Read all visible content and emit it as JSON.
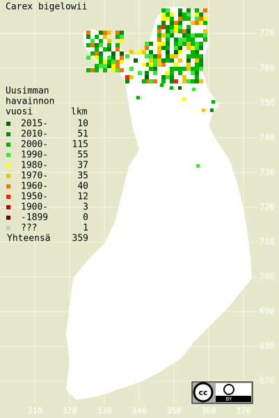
{
  "title": "Carex bigelowii",
  "legend": {
    "heading": [
      "Uusimman",
      "havainnon",
      "vuosi"
    ],
    "count_heading": "lkm",
    "rows": [
      {
        "label": "2015-",
        "count": 10,
        "color": "#006400"
      },
      {
        "label": "2010-",
        "count": 51,
        "color": "#008c00"
      },
      {
        "label": "2000-",
        "count": 115,
        "color": "#00b400"
      },
      {
        "label": "1990-",
        "count": 55,
        "color": "#3ce63c"
      },
      {
        "label": "1980-",
        "count": 37,
        "color": "#ffff00"
      },
      {
        "label": "1970-",
        "count": 35,
        "color": "#f0c800"
      },
      {
        "label": "1960-",
        "count": 40,
        "color": "#f07800"
      },
      {
        "label": "1950-",
        "count": 12,
        "color": "#f02800"
      },
      {
        "label": "1900-",
        "count": 3,
        "color": "#c80000"
      },
      {
        "label": "-1899",
        "count": 0,
        "color": "#780000"
      },
      {
        "label": "???",
        "count": 1,
        "color": "#c8c8c8"
      }
    ],
    "total_label": "Yhteensä",
    "total": 359
  },
  "x_grid": [
    310,
    320,
    330,
    340,
    350,
    360,
    370
  ],
  "y_grid": [
    770,
    760,
    750,
    740,
    730,
    720,
    710,
    700,
    690,
    680,
    670
  ],
  "license_icon": "cc",
  "license": "BY"
}
